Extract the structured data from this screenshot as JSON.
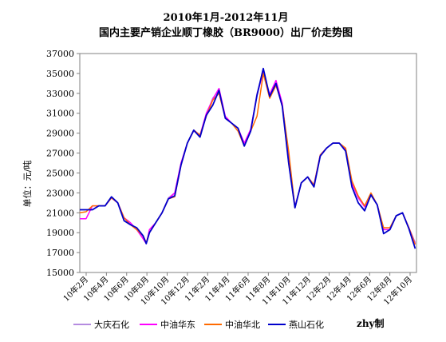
{
  "chart_data": {
    "type": "line",
    "title": "2010年1月-2012年11月",
    "subtitle": "国内主要产销企业顺丁橡胶（BR9000）出厂价走势图",
    "xlabel": "",
    "ylabel": "单位：元/吨",
    "ylim": [
      15000,
      37000
    ],
    "yticks": [
      15000,
      17000,
      19000,
      21000,
      23000,
      25000,
      27000,
      29000,
      31000,
      33000,
      35000,
      37000
    ],
    "x_tick_labels": [
      "10年2月",
      "10年4月",
      "10年6月",
      "10年8月",
      "10年10月",
      "10年12月",
      "11年2月",
      "11年4月",
      "11年6月",
      "11年8月",
      "11年10月",
      "11年12月",
      "12年2月",
      "12年4月",
      "12年6月",
      "12年8月",
      "12年10月"
    ],
    "grid": false,
    "legend_position": "bottom",
    "credit": "zhy制",
    "series": [
      {
        "name": "大庆石化",
        "color": "#b58be0",
        "points": [
          [
            0,
            21300
          ],
          [
            2,
            21300
          ],
          [
            3,
            21700
          ],
          [
            4,
            21700
          ],
          [
            5,
            22500
          ],
          [
            6,
            22000
          ],
          [
            7,
            20500
          ],
          [
            8,
            19800
          ],
          [
            9,
            19300
          ],
          [
            10,
            18600
          ],
          [
            10.5,
            18000
          ],
          [
            11,
            19000
          ],
          [
            12,
            20000
          ],
          [
            13,
            21000
          ],
          [
            14,
            22500
          ],
          [
            15,
            23000
          ],
          [
            16,
            26000
          ],
          [
            17,
            28000
          ],
          [
            18,
            29200
          ],
          [
            19,
            28800
          ],
          [
            20,
            30800
          ],
          [
            21,
            32500
          ],
          [
            22,
            33300
          ],
          [
            23,
            30600
          ],
          [
            24,
            30000
          ],
          [
            25,
            29500
          ],
          [
            26,
            27800
          ],
          [
            27,
            29200
          ],
          [
            28,
            33000
          ],
          [
            29,
            35200
          ],
          [
            30,
            32800
          ],
          [
            31,
            34000
          ],
          [
            32,
            31800
          ],
          [
            33,
            26000
          ],
          [
            34,
            21500
          ],
          [
            35,
            24000
          ],
          [
            36,
            24600
          ],
          [
            37,
            23800
          ],
          [
            38,
            26800
          ],
          [
            39,
            27500
          ],
          [
            40,
            28000
          ],
          [
            41,
            28000
          ],
          [
            42,
            27300
          ],
          [
            43,
            23800
          ],
          [
            44,
            22000
          ],
          [
            45,
            21300
          ],
          [
            46,
            22800
          ],
          [
            47,
            21800
          ],
          [
            48,
            19300
          ],
          [
            49,
            19300
          ],
          [
            50,
            20700
          ],
          [
            51,
            21000
          ],
          [
            52,
            19500
          ],
          [
            53,
            18000
          ]
        ]
      },
      {
        "name": "中油华东",
        "color": "#ff00ff",
        "points": [
          [
            0,
            20400
          ],
          [
            1,
            20400
          ],
          [
            2,
            21700
          ],
          [
            3,
            21700
          ],
          [
            4,
            21700
          ],
          [
            5,
            22500
          ],
          [
            6,
            22000
          ],
          [
            7,
            20500
          ],
          [
            8,
            20000
          ],
          [
            9,
            19300
          ],
          [
            10,
            18400
          ],
          [
            10.5,
            17900
          ],
          [
            11,
            19300
          ],
          [
            12,
            20000
          ],
          [
            13,
            21000
          ],
          [
            14,
            22400
          ],
          [
            15,
            23000
          ],
          [
            16,
            26000
          ],
          [
            17,
            28000
          ],
          [
            18,
            29300
          ],
          [
            19,
            28800
          ],
          [
            20,
            31000
          ],
          [
            21,
            32400
          ],
          [
            22,
            33500
          ],
          [
            23,
            30700
          ],
          [
            24,
            30000
          ],
          [
            25,
            29500
          ],
          [
            26,
            28000
          ],
          [
            27,
            29400
          ],
          [
            28,
            32800
          ],
          [
            29,
            35200
          ],
          [
            30,
            32900
          ],
          [
            31,
            34300
          ],
          [
            32,
            32000
          ],
          [
            33,
            26500
          ],
          [
            34,
            21600
          ],
          [
            35,
            24000
          ],
          [
            36,
            24600
          ],
          [
            37,
            23800
          ],
          [
            38,
            26800
          ],
          [
            39,
            27500
          ],
          [
            40,
            28000
          ],
          [
            41,
            28000
          ],
          [
            42,
            27300
          ],
          [
            43,
            24000
          ],
          [
            44,
            22500
          ],
          [
            45,
            21600
          ],
          [
            46,
            22800
          ],
          [
            47,
            21800
          ],
          [
            48,
            19300
          ],
          [
            49,
            19300
          ],
          [
            50,
            20700
          ],
          [
            51,
            21000
          ],
          [
            52,
            19500
          ],
          [
            53,
            17900
          ]
        ]
      },
      {
        "name": "中油华北",
        "color": "#ff6a00",
        "points": [
          [
            0,
            21000
          ],
          [
            1,
            21100
          ],
          [
            2,
            21700
          ],
          [
            3,
            21700
          ],
          [
            4,
            21700
          ],
          [
            5,
            22500
          ],
          [
            6,
            22000
          ],
          [
            7,
            20500
          ],
          [
            8,
            19800
          ],
          [
            9,
            19300
          ],
          [
            10,
            18700
          ],
          [
            10.5,
            18000
          ],
          [
            11,
            19000
          ],
          [
            12,
            20000
          ],
          [
            13,
            21000
          ],
          [
            14,
            22400
          ],
          [
            15,
            22600
          ],
          [
            16,
            25800
          ],
          [
            17,
            28000
          ],
          [
            18,
            29300
          ],
          [
            19,
            28800
          ],
          [
            20,
            30700
          ],
          [
            21,
            32300
          ],
          [
            22,
            33000
          ],
          [
            23,
            30500
          ],
          [
            24,
            30000
          ],
          [
            25,
            29200
          ],
          [
            26,
            27700
          ],
          [
            27,
            29200
          ],
          [
            28,
            30700
          ],
          [
            29,
            35000
          ],
          [
            30,
            32500
          ],
          [
            31,
            33800
          ],
          [
            32,
            31800
          ],
          [
            33,
            27200
          ],
          [
            34,
            21500
          ],
          [
            35,
            24000
          ],
          [
            36,
            24600
          ],
          [
            37,
            23800
          ],
          [
            38,
            26800
          ],
          [
            39,
            27500
          ],
          [
            40,
            28000
          ],
          [
            41,
            28000
          ],
          [
            42,
            27500
          ],
          [
            43,
            24200
          ],
          [
            44,
            22700
          ],
          [
            45,
            21700
          ],
          [
            46,
            23000
          ],
          [
            47,
            21800
          ],
          [
            48,
            19500
          ],
          [
            49,
            19500
          ],
          [
            50,
            20700
          ],
          [
            51,
            21000
          ],
          [
            52,
            19500
          ],
          [
            53,
            17800
          ]
        ]
      },
      {
        "name": "燕山石化",
        "color": "#0000cc",
        "points": [
          [
            0,
            21300
          ],
          [
            2,
            21300
          ],
          [
            3,
            21700
          ],
          [
            4,
            21700
          ],
          [
            5,
            22600
          ],
          [
            6,
            22000
          ],
          [
            7,
            20200
          ],
          [
            8,
            19800
          ],
          [
            9,
            19500
          ],
          [
            10,
            18700
          ],
          [
            10.5,
            17900
          ],
          [
            11,
            19000
          ],
          [
            12,
            20000
          ],
          [
            13,
            21000
          ],
          [
            14,
            22400
          ],
          [
            15,
            22700
          ],
          [
            16,
            25800
          ],
          [
            17,
            28000
          ],
          [
            18,
            29300
          ],
          [
            19,
            28600
          ],
          [
            20,
            30800
          ],
          [
            21,
            31800
          ],
          [
            22,
            33300
          ],
          [
            23,
            30500
          ],
          [
            24,
            30000
          ],
          [
            25,
            29500
          ],
          [
            26,
            27700
          ],
          [
            27,
            29200
          ],
          [
            28,
            32800
          ],
          [
            29,
            35500
          ],
          [
            30,
            32700
          ],
          [
            31,
            34000
          ],
          [
            32,
            31700
          ],
          [
            33,
            26000
          ],
          [
            34,
            21500
          ],
          [
            35,
            24000
          ],
          [
            36,
            24600
          ],
          [
            37,
            23600
          ],
          [
            38,
            26700
          ],
          [
            39,
            27500
          ],
          [
            40,
            28000
          ],
          [
            41,
            28000
          ],
          [
            42,
            27200
          ],
          [
            43,
            23600
          ],
          [
            44,
            22000
          ],
          [
            45,
            21200
          ],
          [
            46,
            22800
          ],
          [
            47,
            21800
          ],
          [
            48,
            18900
          ],
          [
            49,
            19300
          ],
          [
            50,
            20700
          ],
          [
            51,
            21000
          ],
          [
            52,
            19400
          ],
          [
            53,
            17400
          ]
        ]
      }
    ]
  }
}
